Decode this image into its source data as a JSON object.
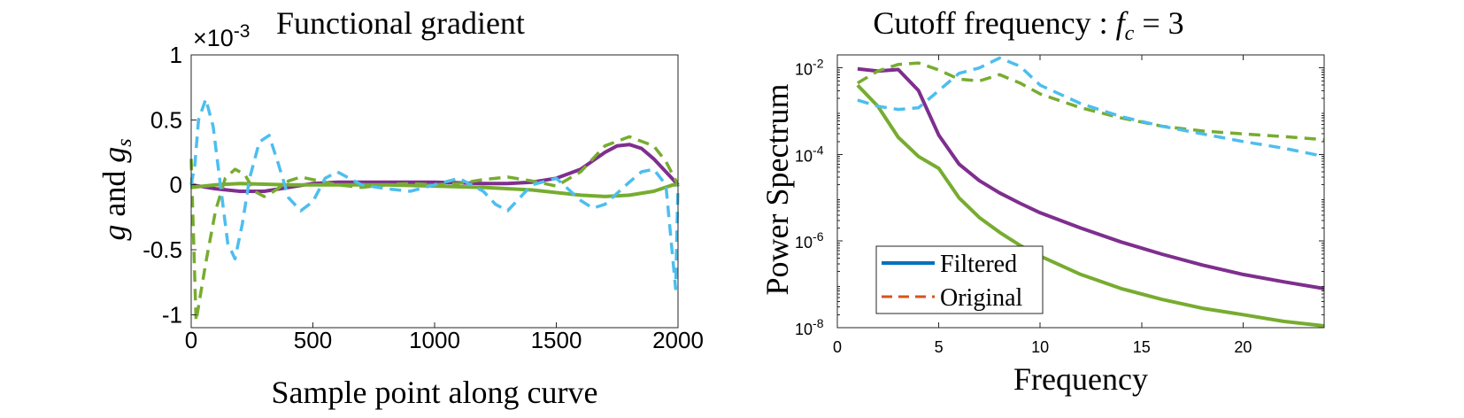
{
  "chart_data": [
    {
      "type": "line",
      "title": "Functional gradient",
      "xlabel": "Sample point along curve",
      "ylabel": "g and g_s",
      "y_scale_exponent": "×10",
      "y_scale_power": "-3",
      "xlim": [
        0,
        2000
      ],
      "ylim": [
        -1.1,
        1.0
      ],
      "x_ticks": [
        "0",
        "500",
        "1000",
        "1500",
        "2000"
      ],
      "y_ticks": [
        "1",
        "0.5",
        "0",
        "-0.5",
        "-1"
      ],
      "grid": false,
      "series": [
        {
          "color": "#7E2F8E",
          "dash": "solid",
          "x": [
            0,
            100,
            200,
            300,
            400,
            500,
            600,
            800,
            1000,
            1200,
            1300,
            1400,
            1500,
            1600,
            1700,
            1750,
            1800,
            1850,
            1900,
            1950,
            2000
          ],
          "y": [
            0.0,
            -0.03,
            -0.05,
            -0.05,
            -0.02,
            0.01,
            0.02,
            0.02,
            0.02,
            0.01,
            0.01,
            0.02,
            0.05,
            0.12,
            0.25,
            0.3,
            0.31,
            0.28,
            0.2,
            0.1,
            0.0
          ]
        },
        {
          "color": "#77AC30",
          "dash": "solid",
          "x": [
            0,
            100,
            200,
            400,
            600,
            800,
            1000,
            1200,
            1400,
            1600,
            1700,
            1800,
            1900,
            1980,
            2000
          ],
          "y": [
            -0.02,
            0.0,
            0.01,
            0.0,
            0.0,
            0.0,
            -0.01,
            -0.02,
            -0.04,
            -0.08,
            -0.09,
            -0.08,
            -0.05,
            0.0,
            0.0
          ]
        },
        {
          "color": "#77AC30",
          "dash": "dashed",
          "x": [
            0,
            20,
            60,
            100,
            140,
            180,
            220,
            260,
            300,
            340,
            400,
            450,
            500,
            600,
            700,
            800,
            900,
            1000,
            1100,
            1200,
            1300,
            1400,
            1500,
            1600,
            1700,
            1800,
            1900,
            1950,
            2000
          ],
          "y": [
            0.2,
            -1.05,
            -0.6,
            -0.2,
            0.05,
            0.12,
            0.08,
            -0.05,
            -0.09,
            -0.05,
            0.03,
            0.06,
            0.04,
            0.0,
            -0.02,
            0.0,
            0.01,
            0.0,
            0.01,
            0.04,
            0.06,
            0.03,
            -0.01,
            0.1,
            0.3,
            0.37,
            0.3,
            0.18,
            0.0
          ]
        },
        {
          "color": "#4DBEEE",
          "dash": "dashed",
          "x": [
            0,
            15,
            30,
            60,
            90,
            120,
            150,
            180,
            210,
            240,
            280,
            320,
            360,
            400,
            450,
            500,
            550,
            600,
            700,
            800,
            900,
            1000,
            1100,
            1200,
            1250,
            1300,
            1350,
            1400,
            1500,
            1600,
            1650,
            1700,
            1800,
            1850,
            1900,
            1950,
            1990,
            2000
          ],
          "y": [
            0.0,
            0.15,
            0.5,
            0.66,
            0.45,
            0.0,
            -0.45,
            -0.57,
            -0.3,
            0.05,
            0.33,
            0.38,
            0.15,
            -0.1,
            -0.2,
            -0.13,
            0.05,
            0.1,
            0.0,
            -0.03,
            -0.05,
            0.0,
            0.05,
            -0.05,
            -0.15,
            -0.2,
            -0.1,
            0.0,
            0.05,
            -0.12,
            -0.18,
            -0.15,
            0.02,
            0.1,
            0.12,
            0.0,
            -0.8,
            0.0
          ]
        }
      ]
    },
    {
      "type": "line",
      "title": "Cutoff frequency : ",
      "title_math": "f_c = 3",
      "xlabel": "Frequency",
      "ylabel": "Power Spectrum",
      "xlim": [
        0,
        24
      ],
      "ylim": [
        1e-08,
        0.02
      ],
      "y_scale": "log",
      "x_ticks": [
        "0",
        "5",
        "10",
        "15",
        "20"
      ],
      "y_ticks": [
        "10",
        "10",
        "10",
        "10",
        "10"
      ],
      "y_tick_powers": [
        "-2",
        "-4",
        "-6",
        "-8"
      ],
      "grid": false,
      "legend": {
        "placement": "bottom-left",
        "entries": [
          {
            "name": "Filtered",
            "color": "#0072BD",
            "dash": "solid"
          },
          {
            "name": "Original",
            "color": "#D95319",
            "dash": "dashed"
          }
        ]
      },
      "series": [
        {
          "color": "#7E2F8E",
          "dash": "solid",
          "x": [
            1,
            2,
            3,
            4,
            5,
            6,
            7,
            8,
            9,
            10,
            12,
            14,
            16,
            18,
            20,
            22,
            24
          ],
          "y": [
            0.0095,
            0.0085,
            0.0092,
            0.003,
            0.00028,
            6e-05,
            2.5e-05,
            1.3e-05,
            7.5e-06,
            4.5e-06,
            2e-06,
            9.5e-07,
            5e-07,
            2.8e-07,
            1.7e-07,
            1.15e-07,
            8e-08
          ]
        },
        {
          "color": "#77AC30",
          "dash": "solid",
          "x": [
            1,
            2,
            3,
            4,
            5,
            6,
            7,
            8,
            9,
            10,
            12,
            14,
            16,
            18,
            20,
            22,
            24
          ],
          "y": [
            0.004,
            0.0013,
            0.00025,
            9e-05,
            4.8e-05,
            1e-05,
            3.5e-06,
            1.6e-06,
            8e-07,
            4.5e-07,
            1.7e-07,
            8e-08,
            4.5e-08,
            2.8e-08,
            2e-08,
            1.4e-08,
            1.1e-08
          ]
        },
        {
          "color": "#77AC30",
          "dash": "dashed",
          "x": [
            1,
            2,
            3,
            4,
            5,
            6,
            7,
            8,
            9,
            10,
            12,
            14,
            16,
            18,
            20,
            22,
            24
          ],
          "y": [
            0.0045,
            0.0085,
            0.012,
            0.013,
            0.009,
            0.0055,
            0.005,
            0.007,
            0.0045,
            0.0025,
            0.0012,
            0.0007,
            0.00045,
            0.00035,
            0.0003,
            0.00026,
            0.00022
          ]
        },
        {
          "color": "#4DBEEE",
          "dash": "dashed",
          "x": [
            1,
            2,
            3,
            4,
            5,
            6,
            7,
            8,
            9,
            10,
            12,
            14,
            16,
            18,
            20,
            22,
            24
          ],
          "y": [
            0.0018,
            0.0013,
            0.0011,
            0.0012,
            0.003,
            0.0075,
            0.01,
            0.017,
            0.011,
            0.004,
            0.0015,
            0.00075,
            0.00045,
            0.0003,
            0.0002,
            0.00014,
            9e-05
          ]
        }
      ]
    }
  ]
}
